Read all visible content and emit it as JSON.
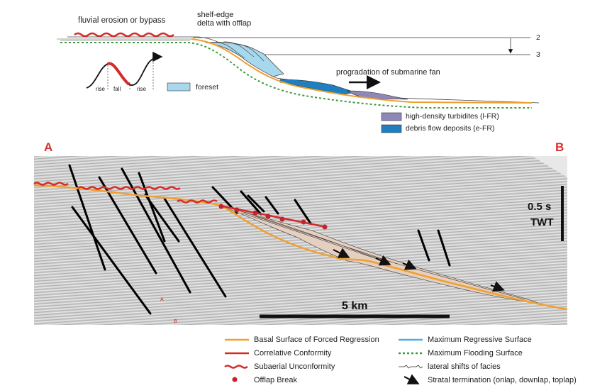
{
  "schematic": {
    "fluvial_label": "fluvial erosion or bypass",
    "shelf_edge_label": "shelf-edge\ndelta with offlap",
    "sea_level_2": "2",
    "sea_level_3": "3",
    "curve_rise_1": "rise",
    "curve_fall": "fall",
    "curve_rise_2": "rise",
    "foreset_label": "foreset",
    "progradation_label": "progradation of submarine fan",
    "legend_hdt": "high-density turbidites (l-FR)",
    "legend_debris": "debris flow deposits (e-FR)"
  },
  "seismic": {
    "label_a": "A",
    "label_b": "B",
    "vertical_scale_value": "0.5 s",
    "vertical_scale_unit": "TWT",
    "horizontal_scale": "5 km",
    "small_a": "A",
    "small_b": "B"
  },
  "legend": {
    "items": [
      {
        "label": "Basal Surface of Forced Regression"
      },
      {
        "label": "Maximum Regressive Surface"
      },
      {
        "label": "Correlative Conformity"
      },
      {
        "label": "Maximum Flooding Surface"
      },
      {
        "label": "Subaerial Unconformity"
      },
      {
        "label": "lateral shifts of facies"
      },
      {
        "label": "Offlap Break"
      },
      {
        "label": "Stratal termination (onlap, downlap, toplap)"
      }
    ]
  },
  "colors": {
    "orange": "#f0a030",
    "red": "#d42a28",
    "blue_light": "#a8d8ee",
    "blue_dark": "#1f7fc1",
    "purple": "#8e88b8",
    "green": "#3a9a3a"
  }
}
